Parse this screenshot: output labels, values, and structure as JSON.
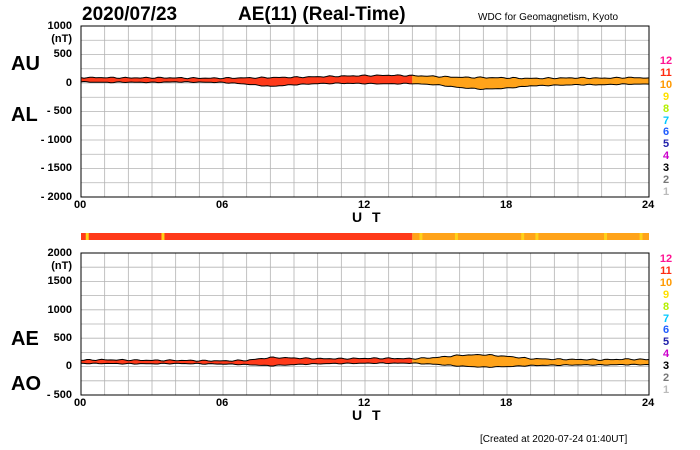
{
  "header": {
    "date": "2020/07/23",
    "title": "AE(11) (Real-Time)",
    "source": "WDC for Geomagnetism, Kyoto",
    "created": "[Created at 2020-07-24 01:40UT]"
  },
  "colors": {
    "red": "#ff3a1a",
    "orange": "#ffa31a",
    "yellow": "#ffd21a"
  },
  "level_scale": [
    {
      "label": "12",
      "color": "#ff1493"
    },
    {
      "label": "11",
      "color": "#ff2a10"
    },
    {
      "label": "10",
      "color": "#ff9900"
    },
    {
      "label": "9",
      "color": "#ffe000"
    },
    {
      "label": "8",
      "color": "#b4f000"
    },
    {
      "label": "7",
      "color": "#00c8ff"
    },
    {
      "label": "6",
      "color": "#1f5cff"
    },
    {
      "label": "5",
      "color": "#2020aa"
    },
    {
      "label": "4",
      "color": "#cc00cc"
    },
    {
      "label": "3",
      "color": "#000000"
    },
    {
      "label": "2",
      "color": "#777777"
    },
    {
      "label": "1",
      "color": "#bbbbbb"
    }
  ],
  "status_bar": {
    "segments": [
      {
        "from": 0,
        "to": 14,
        "level": "11"
      },
      {
        "from": 14,
        "to": 24,
        "level": "10"
      }
    ]
  },
  "chart_data": [
    {
      "type": "area",
      "panel": "top",
      "series_labels": [
        "AU",
        "AL"
      ],
      "y_unit": "(nT)",
      "ylim": [
        -2000,
        1000
      ],
      "yticks": [
        "1000",
        "500",
        "0",
        "- 500",
        "- 1000",
        "- 1500",
        "- 2000"
      ],
      "xlim": [
        0,
        24
      ],
      "xticks": [
        "00",
        "06",
        "12",
        "18",
        "24"
      ],
      "xlabel": "U T",
      "grid": true,
      "hours": [
        0,
        1,
        2,
        3,
        4,
        5,
        6,
        7,
        8,
        9,
        10,
        11,
        12,
        13,
        14,
        15,
        16,
        17,
        18,
        19,
        20,
        21,
        22,
        23,
        24
      ],
      "series": [
        {
          "name": "AU",
          "values": [
            95,
            95,
            90,
            92,
            90,
            85,
            85,
            90,
            95,
            100,
            110,
            120,
            130,
            135,
            130,
            115,
            100,
            95,
            90,
            80,
            85,
            90,
            85,
            95,
            90
          ]
        },
        {
          "name": "AL",
          "values": [
            20,
            10,
            15,
            10,
            20,
            15,
            10,
            -20,
            -60,
            -30,
            -10,
            -5,
            -10,
            -15,
            -10,
            -30,
            -80,
            -110,
            -90,
            -50,
            -40,
            -30,
            -30,
            -20,
            -20
          ]
        }
      ]
    },
    {
      "type": "area",
      "panel": "bottom",
      "series_labels": [
        "AE",
        "AO"
      ],
      "y_unit": "(nT)",
      "ylim": [
        -500,
        2000
      ],
      "yticks": [
        "2000",
        "1500",
        "1000",
        "500",
        "0",
        "- 500"
      ],
      "xlim": [
        0,
        24
      ],
      "xticks": [
        "00",
        "06",
        "12",
        "18",
        "24"
      ],
      "xlabel": "U T",
      "grid": true,
      "hours": [
        0,
        1,
        2,
        3,
        4,
        5,
        6,
        7,
        8,
        9,
        10,
        11,
        12,
        13,
        14,
        15,
        16,
        17,
        18,
        19,
        20,
        21,
        22,
        23,
        24
      ],
      "series": [
        {
          "name": "AE",
          "values": [
            115,
            120,
            115,
            110,
            110,
            105,
            100,
            110,
            160,
            150,
            140,
            140,
            145,
            145,
            140,
            160,
            200,
            210,
            180,
            140,
            130,
            125,
            120,
            130,
            125
          ]
        },
        {
          "name": "AO",
          "values": [
            55,
            55,
            50,
            50,
            55,
            50,
            45,
            35,
            15,
            35,
            50,
            55,
            60,
            60,
            60,
            40,
            10,
            -10,
            0,
            20,
            25,
            30,
            30,
            35,
            35
          ]
        }
      ]
    }
  ]
}
